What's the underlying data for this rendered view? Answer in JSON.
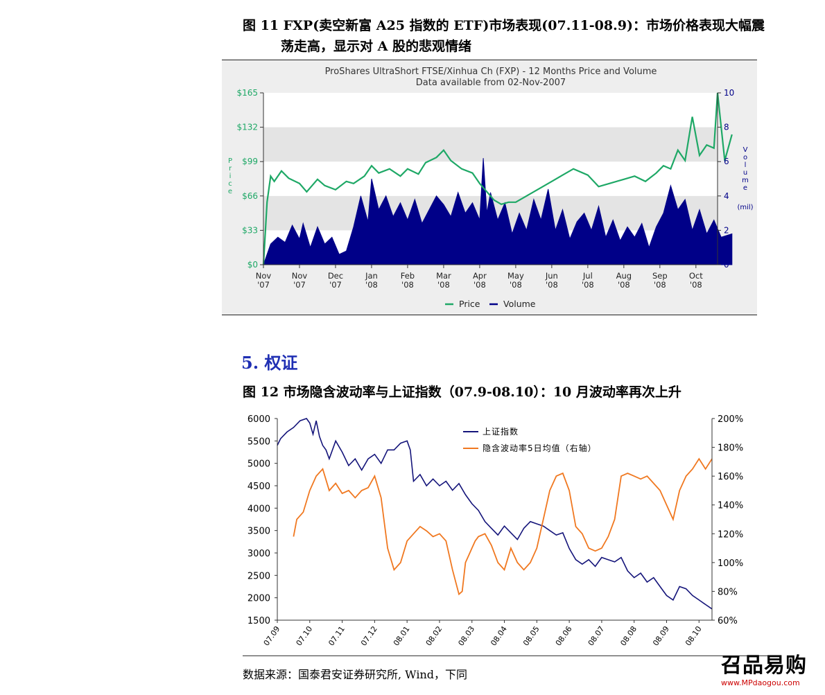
{
  "fig11": {
    "title_line1": "图 11 FXP(卖空新富 A25 指数的 ETF)市场表现(07.11-08.9)：市场价格表现大幅震",
    "title_line2": "荡走高，显示对 A 股的悲观情绪"
  },
  "section": {
    "heading": "5.  权证"
  },
  "fig12": {
    "title": "图 12  市场隐含波动率与上证指数（07.9-08.10）：10 月波动率再次上升"
  },
  "source": "数据来源：国泰君安证券研究所, Wind，下同",
  "logo": {
    "text": "召品易购",
    "url": "www.MPdaogou.com"
  },
  "colors": {
    "price": "#1ea866",
    "volume": "#000088",
    "index_line": "#14147a",
    "vol_line": "#f07820"
  },
  "chart_data": [
    {
      "type": "line",
      "title": "ProShares UltraShort FTSE/Xinhua Ch (FXP) - 12 Months Price and Volume",
      "subtitle": "Data available from 02-Nov-2007",
      "ylabel_left": "Price",
      "ylabel_right": "Volume",
      "ylabel_right_unit": "(mil)",
      "y_left_ticks": [
        "$0",
        "$33",
        "$66",
        "$99",
        "$132",
        "$165"
      ],
      "y_left_range": [
        0,
        165
      ],
      "y_right_ticks": [
        "0",
        "2",
        "4",
        "6",
        "8",
        "10"
      ],
      "y_right_range": [
        0,
        10
      ],
      "x_tick_labels": [
        [
          "Nov",
          "'07"
        ],
        [
          "Nov",
          "'07"
        ],
        [
          "Dec",
          "'07"
        ],
        [
          "Jan",
          "'08"
        ],
        [
          "Feb",
          "'08"
        ],
        [
          "Mar",
          "'08"
        ],
        [
          "Apr",
          "'08"
        ],
        [
          "May",
          "'08"
        ],
        [
          "Jun",
          "'08"
        ],
        [
          "Jul",
          "'08"
        ],
        [
          "Aug",
          "'08"
        ],
        [
          "Sep",
          "'08"
        ],
        [
          "Oct",
          "'08"
        ]
      ],
      "legend": [
        "Price",
        "Volume"
      ],
      "legend_position": "bottom",
      "series": [
        {
          "name": "Price",
          "kind": "line",
          "x": [
            0,
            0.1,
            0.2,
            0.3,
            0.5,
            0.7,
            1.0,
            1.2,
            1.5,
            1.7,
            2.0,
            2.3,
            2.5,
            2.8,
            3.0,
            3.2,
            3.5,
            3.8,
            4.0,
            4.3,
            4.5,
            4.8,
            5.0,
            5.2,
            5.5,
            5.8,
            6.0,
            6.2,
            6.4,
            6.6,
            6.8,
            7.0,
            7.3,
            7.6,
            8.0,
            8.3,
            8.6,
            9.0,
            9.3,
            9.6,
            10.0,
            10.3,
            10.6,
            10.9,
            11.1,
            11.3,
            11.5,
            11.7,
            11.9,
            12.1,
            12.3,
            12.5,
            12.6,
            12.8,
            13.0
          ],
          "values": [
            0,
            60,
            85,
            80,
            90,
            83,
            78,
            70,
            82,
            76,
            72,
            80,
            78,
            85,
            95,
            88,
            92,
            85,
            92,
            87,
            98,
            103,
            110,
            100,
            92,
            88,
            78,
            70,
            62,
            58,
            60,
            60,
            66,
            72,
            80,
            86,
            92,
            86,
            75,
            78,
            82,
            85,
            80,
            88,
            95,
            92,
            110,
            100,
            142,
            105,
            115,
            112,
            165,
            100,
            125
          ]
        },
        {
          "name": "Volume",
          "kind": "area",
          "x": [
            0,
            0.2,
            0.4,
            0.6,
            0.8,
            1.0,
            1.1,
            1.3,
            1.5,
            1.7,
            1.9,
            2.1,
            2.3,
            2.5,
            2.7,
            2.9,
            3.0,
            3.2,
            3.4,
            3.6,
            3.8,
            4.0,
            4.2,
            4.4,
            4.6,
            4.8,
            5.0,
            5.2,
            5.4,
            5.6,
            5.8,
            6.0,
            6.1,
            6.2,
            6.3,
            6.5,
            6.7,
            6.9,
            7.1,
            7.3,
            7.5,
            7.7,
            7.9,
            8.1,
            8.3,
            8.5,
            8.7,
            8.9,
            9.1,
            9.3,
            9.5,
            9.7,
            9.9,
            10.1,
            10.3,
            10.5,
            10.7,
            10.9,
            11.1,
            11.3,
            11.5,
            11.7,
            11.9,
            12.1,
            12.3,
            12.5,
            12.7,
            13.0
          ],
          "values": [
            0,
            1.2,
            1.6,
            1.3,
            2.3,
            1.5,
            2.4,
            1.0,
            2.2,
            1.2,
            1.6,
            0.6,
            0.8,
            2.2,
            4.0,
            2.5,
            5.0,
            3.2,
            4.0,
            2.8,
            3.6,
            2.6,
            3.8,
            2.4,
            3.2,
            4.0,
            3.5,
            2.8,
            4.2,
            3.0,
            3.6,
            2.6,
            6.2,
            3.0,
            4.2,
            2.6,
            3.6,
            1.8,
            3.0,
            2.0,
            3.8,
            2.6,
            4.4,
            2.0,
            3.2,
            1.5,
            2.5,
            3.0,
            2.0,
            3.4,
            1.6,
            2.6,
            1.4,
            2.2,
            1.6,
            2.4,
            1.0,
            2.2,
            3.0,
            4.6,
            3.2,
            3.8,
            2.0,
            3.2,
            1.8,
            2.6,
            1.6,
            1.8
          ]
        }
      ]
    },
    {
      "type": "line",
      "y_left_ticks": [
        "1500",
        "2000",
        "2500",
        "3000",
        "3500",
        "4000",
        "4500",
        "5000",
        "5500",
        "6000"
      ],
      "y_left_range": [
        1500,
        6000
      ],
      "y_right_ticks": [
        "60%",
        "80%",
        "100%",
        "120%",
        "140%",
        "160%",
        "180%",
        "200%"
      ],
      "y_right_range": [
        60,
        200
      ],
      "x_tick_labels": [
        "07.09",
        "07.10",
        "07.11",
        "07.12",
        "08.01",
        "08.02",
        "08.03",
        "08.04",
        "08.05",
        "08.06",
        "08.07",
        "08.08",
        "08.09",
        "08.10"
      ],
      "legend": [
        "上证指数",
        "隐含波动率5日均值（右轴）"
      ],
      "legend_position": "top-center",
      "series": [
        {
          "name": "上证指数",
          "axis": "left",
          "x": [
            0.0,
            0.1,
            0.3,
            0.5,
            0.7,
            0.9,
            1.0,
            1.1,
            1.2,
            1.3,
            1.4,
            1.5,
            1.6,
            1.8,
            2.0,
            2.2,
            2.4,
            2.6,
            2.8,
            3.0,
            3.2,
            3.4,
            3.6,
            3.8,
            4.0,
            4.1,
            4.2,
            4.4,
            4.6,
            4.8,
            5.0,
            5.2,
            5.4,
            5.6,
            5.8,
            6.0,
            6.2,
            6.4,
            6.6,
            6.8,
            7.0,
            7.2,
            7.4,
            7.6,
            7.8,
            8.0,
            8.2,
            8.4,
            8.6,
            8.8,
            9.0,
            9.2,
            9.4,
            9.6,
            9.8,
            10.0,
            10.2,
            10.4,
            10.6,
            10.8,
            11.0,
            11.2,
            11.4,
            11.6,
            11.8,
            12.0,
            12.2,
            12.4,
            12.6,
            12.8,
            13.0,
            13.2,
            13.4
          ],
          "values": [
            5400,
            5550,
            5700,
            5800,
            5950,
            6000,
            5900,
            5650,
            5950,
            5600,
            5400,
            5300,
            5100,
            5500,
            5250,
            4950,
            5100,
            4850,
            5100,
            5200,
            5000,
            5300,
            5300,
            5450,
            5500,
            5300,
            4600,
            4750,
            4500,
            4650,
            4500,
            4600,
            4400,
            4550,
            4300,
            4100,
            3950,
            3700,
            3550,
            3400,
            3600,
            3450,
            3300,
            3550,
            3700,
            3650,
            3600,
            3500,
            3400,
            3450,
            3100,
            2850,
            2750,
            2850,
            2700,
            2900,
            2850,
            2800,
            2900,
            2600,
            2450,
            2550,
            2350,
            2450,
            2250,
            2050,
            1950,
            2250,
            2200,
            2050,
            1950,
            1850,
            1750
          ]
        },
        {
          "name": "隐含波动率5日均值（右轴）",
          "axis": "right",
          "x": [
            0.5,
            0.6,
            0.8,
            1.0,
            1.2,
            1.4,
            1.6,
            1.8,
            2.0,
            2.2,
            2.4,
            2.6,
            2.8,
            3.0,
            3.2,
            3.4,
            3.6,
            3.8,
            4.0,
            4.2,
            4.4,
            4.6,
            4.8,
            5.0,
            5.2,
            5.4,
            5.6,
            5.7,
            5.8,
            5.9,
            6.0,
            6.1,
            6.2,
            6.4,
            6.6,
            6.8,
            7.0,
            7.2,
            7.4,
            7.6,
            7.8,
            8.0,
            8.2,
            8.4,
            8.6,
            8.8,
            9.0,
            9.2,
            9.4,
            9.6,
            9.8,
            10.0,
            10.2,
            10.4,
            10.6,
            10.8,
            11.0,
            11.2,
            11.4,
            11.6,
            11.8,
            12.0,
            12.2,
            12.4,
            12.6,
            12.8,
            13.0,
            13.2,
            13.4
          ],
          "values": [
            118,
            130,
            135,
            150,
            160,
            165,
            150,
            155,
            148,
            150,
            145,
            150,
            152,
            160,
            145,
            110,
            95,
            100,
            115,
            120,
            125,
            122,
            118,
            120,
            115,
            95,
            78,
            80,
            100,
            105,
            110,
            115,
            118,
            120,
            112,
            100,
            95,
            110,
            100,
            95,
            100,
            110,
            130,
            150,
            160,
            162,
            150,
            125,
            120,
            110,
            108,
            110,
            118,
            130,
            160,
            162,
            160,
            158,
            160,
            155,
            150,
            140,
            130,
            150,
            160,
            165,
            172,
            165,
            172
          ]
        }
      ]
    }
  ]
}
